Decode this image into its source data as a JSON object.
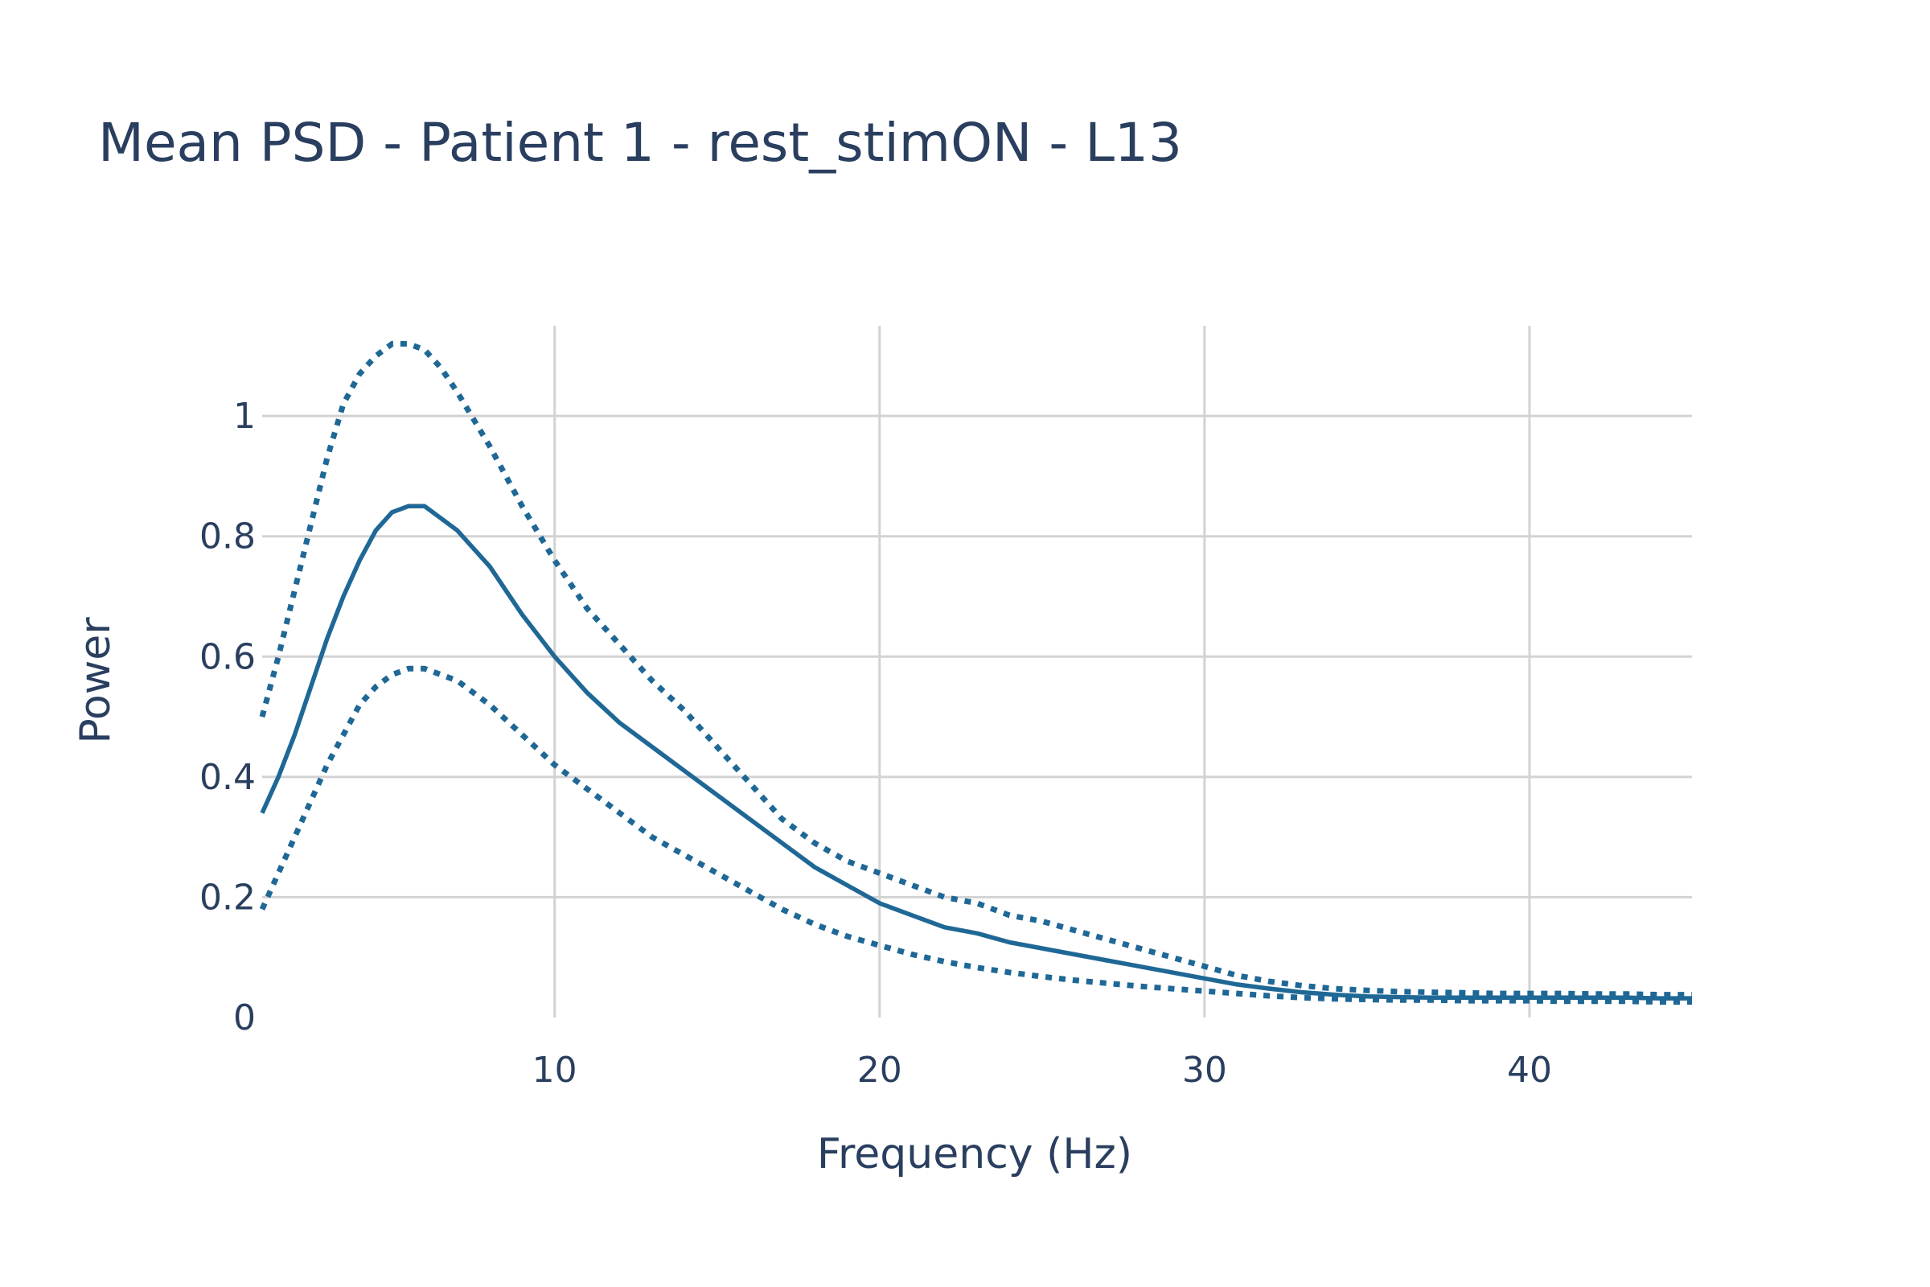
{
  "chart_data": {
    "type": "line",
    "title": "Mean PSD - Patient 1 - rest_stimON - L13",
    "xlabel": "Frequency (Hz)",
    "ylabel": "Power",
    "xlim": [
      1,
      45
    ],
    "ylim": [
      0,
      1.15
    ],
    "grid": true,
    "legend": "none",
    "x_ticks": [
      {
        "value": 10,
        "label": "10"
      },
      {
        "value": 20,
        "label": "20"
      },
      {
        "value": 30,
        "label": "30"
      },
      {
        "value": 40,
        "label": "40"
      }
    ],
    "y_ticks": [
      {
        "value": 0,
        "label": "0"
      },
      {
        "value": 0.2,
        "label": "0.2"
      },
      {
        "value": 0.4,
        "label": "0.4"
      },
      {
        "value": 0.6,
        "label": "0.6"
      },
      {
        "value": 0.8,
        "label": "0.8"
      },
      {
        "value": 1,
        "label": "1"
      }
    ],
    "colors": {
      "series": "#1f6896",
      "grid": "#d3d3d3",
      "text": "#2a3f5f"
    },
    "x": [
      1,
      1.5,
      2,
      2.5,
      3,
      3.5,
      4,
      4.5,
      5,
      5.5,
      6,
      6.5,
      7,
      8,
      9,
      10,
      11,
      12,
      13,
      14,
      15,
      16,
      17,
      18,
      19,
      20,
      21,
      22,
      23,
      24,
      25,
      26,
      27,
      28,
      29,
      30,
      31,
      32,
      33,
      34,
      35,
      36,
      37,
      38,
      39,
      40,
      41,
      42,
      43,
      44,
      45
    ],
    "series": [
      {
        "style": "solid",
        "values": [
          0.34,
          0.4,
          0.47,
          0.55,
          0.63,
          0.7,
          0.76,
          0.81,
          0.84,
          0.85,
          0.85,
          0.83,
          0.81,
          0.75,
          0.67,
          0.6,
          0.54,
          0.49,
          0.45,
          0.41,
          0.37,
          0.33,
          0.29,
          0.25,
          0.22,
          0.19,
          0.17,
          0.15,
          0.14,
          0.125,
          0.115,
          0.105,
          0.095,
          0.085,
          0.075,
          0.065,
          0.055,
          0.048,
          0.042,
          0.038,
          0.035,
          0.034,
          0.033,
          0.033,
          0.033,
          0.033,
          0.033,
          0.033,
          0.033,
          0.032,
          0.032
        ]
      },
      {
        "style": "dotted",
        "values": [
          0.5,
          0.6,
          0.71,
          0.82,
          0.93,
          1.02,
          1.07,
          1.1,
          1.12,
          1.12,
          1.11,
          1.08,
          1.04,
          0.95,
          0.85,
          0.76,
          0.68,
          0.62,
          0.56,
          0.51,
          0.45,
          0.39,
          0.33,
          0.29,
          0.26,
          0.24,
          0.22,
          0.2,
          0.19,
          0.17,
          0.16,
          0.145,
          0.13,
          0.115,
          0.1,
          0.085,
          0.07,
          0.06,
          0.053,
          0.048,
          0.045,
          0.043,
          0.042,
          0.041,
          0.04,
          0.04,
          0.04,
          0.039,
          0.039,
          0.038,
          0.038
        ]
      },
      {
        "style": "dotted",
        "values": [
          0.18,
          0.24,
          0.3,
          0.36,
          0.42,
          0.47,
          0.52,
          0.55,
          0.57,
          0.58,
          0.58,
          0.57,
          0.56,
          0.52,
          0.47,
          0.42,
          0.38,
          0.34,
          0.3,
          0.27,
          0.24,
          0.21,
          0.18,
          0.155,
          0.135,
          0.12,
          0.105,
          0.093,
          0.083,
          0.075,
          0.068,
          0.062,
          0.057,
          0.052,
          0.048,
          0.044,
          0.04,
          0.036,
          0.033,
          0.031,
          0.03,
          0.029,
          0.029,
          0.028,
          0.028,
          0.028,
          0.027,
          0.027,
          0.027,
          0.026,
          0.026
        ]
      }
    ]
  }
}
